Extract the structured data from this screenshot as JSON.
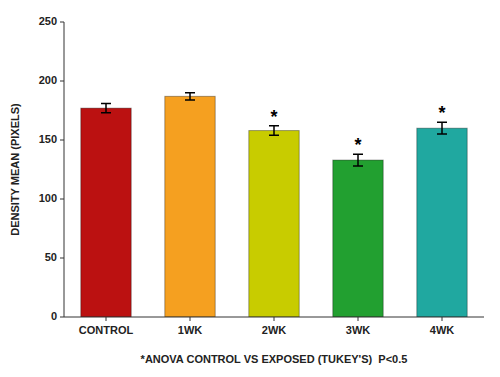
{
  "chart_data": {
    "type": "bar",
    "categories": [
      "CONTROL",
      "1WK",
      "2WK",
      "3WK",
      "4WK"
    ],
    "values": [
      177,
      187,
      158,
      133,
      160
    ],
    "errors": [
      4,
      3,
      4,
      5,
      5
    ],
    "colors": [
      "#bb1111",
      "#f5a020",
      "#c8cc00",
      "#22a030",
      "#20a8a0"
    ],
    "annotations": [
      {
        "text": "*",
        "category": "2WK"
      },
      {
        "text": "*",
        "category": "3WK"
      },
      {
        "text": "*",
        "category": "4WK"
      }
    ],
    "xlabel": "*ANOVA CONTROL VS EXPOSED (TUKEY'S)  P<0.5",
    "ylabel": "DENSITY MEAN (PIXELS)",
    "ylim": [
      0,
      250
    ],
    "yticks": [
      0,
      50,
      100,
      150,
      200,
      250
    ],
    "grid": false
  }
}
